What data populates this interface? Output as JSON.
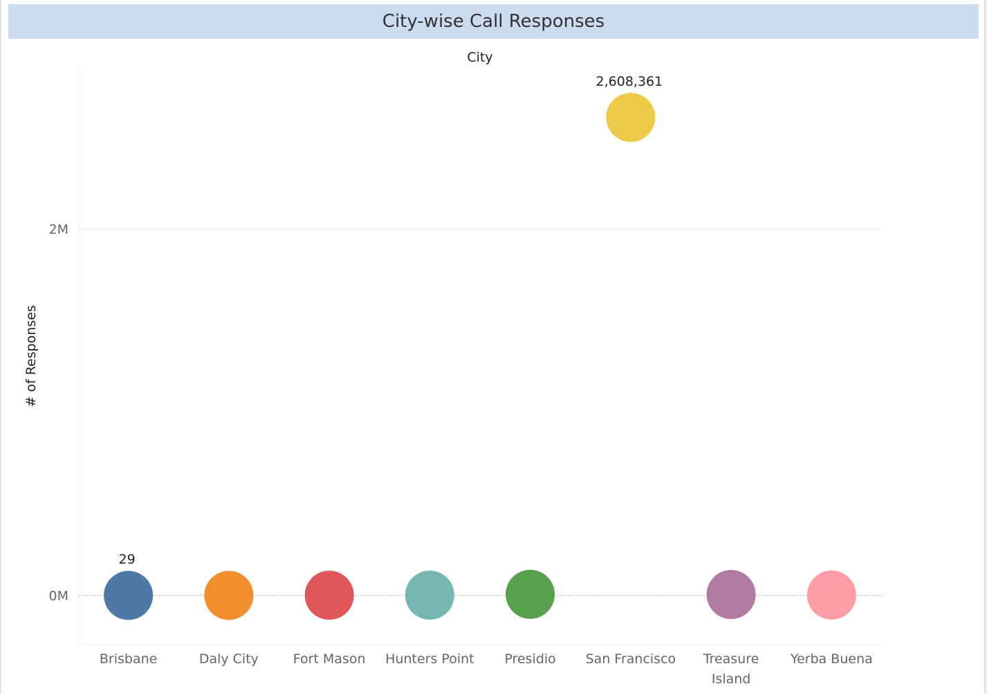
{
  "title": "City-wise Call Responses",
  "chart_data": {
    "type": "scatter",
    "title": "City-wise Call Responses",
    "column_header": "City",
    "ylabel": "# of Responses",
    "ytick_labels": [
      "0M",
      "2M"
    ],
    "ytick_values": [
      0,
      2000000
    ],
    "ylim": [
      -270000,
      2900000
    ],
    "grid": true,
    "categories": [
      "Brisbane",
      "Daly City",
      "Fort Mason",
      "Hunters Point",
      "Presidio",
      "San Francisco",
      "Treasure Island",
      "Yerba Buena"
    ],
    "category_label_lines": [
      [
        "Brisbane"
      ],
      [
        "Daly City"
      ],
      [
        "Fort Mason"
      ],
      [
        "Hunters Point"
      ],
      [
        "Presidio"
      ],
      [
        "San Francisco"
      ],
      [
        "Treasure",
        "Island"
      ],
      [
        "Yerba Buena"
      ]
    ],
    "values": [
      29,
      100,
      1000,
      1500,
      6000,
      2608361,
      5000,
      2000
    ],
    "data_labels": [
      "29",
      "",
      "",
      "",
      "",
      "2,608,361",
      "",
      ""
    ],
    "colors": [
      "#4e79a7",
      "#f28e2b",
      "#e15759",
      "#76b7b2",
      "#59a14f",
      "#edc948",
      "#b07aa1",
      "#ff9da7"
    ]
  }
}
